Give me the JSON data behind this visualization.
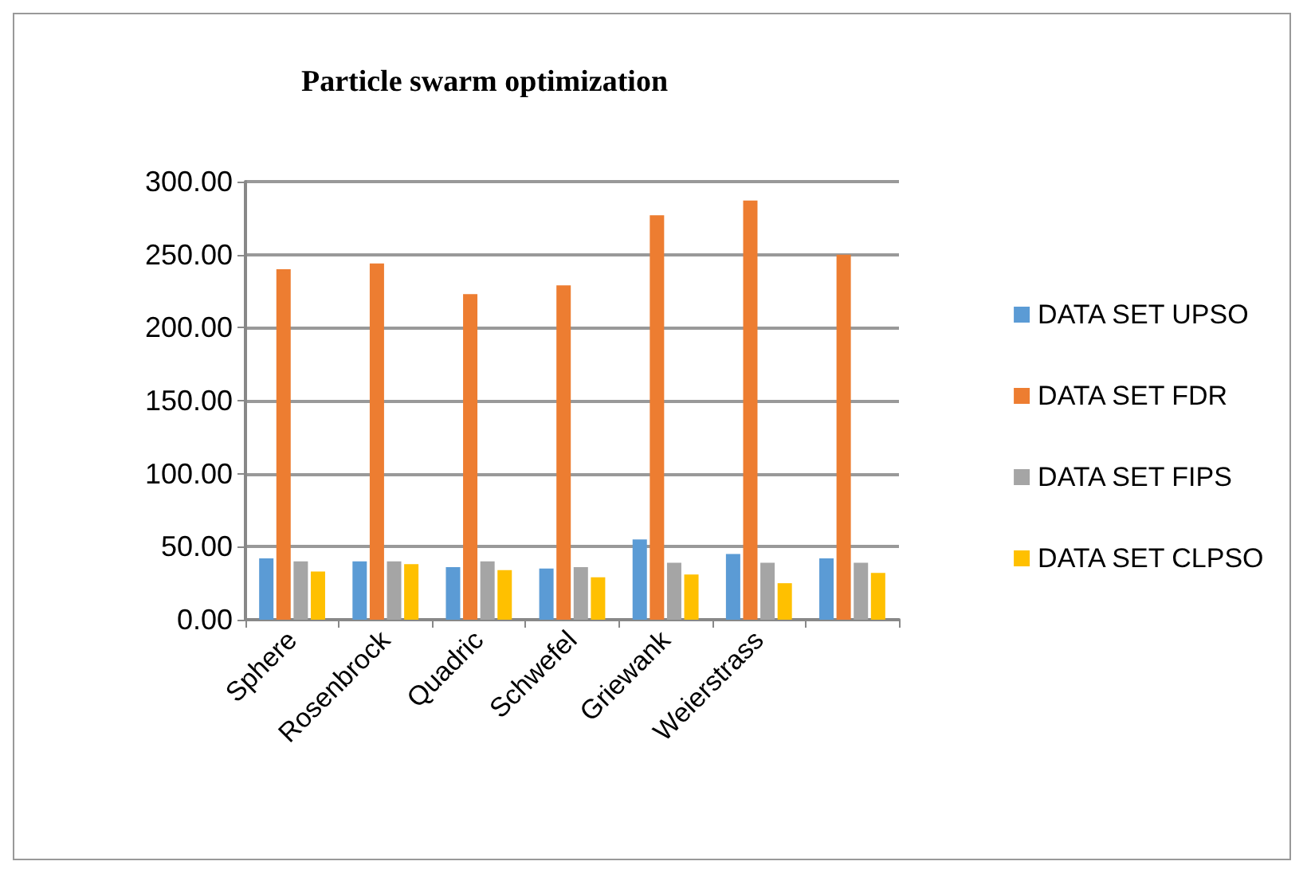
{
  "chart_data": {
    "type": "bar",
    "title": "Particle swarm optimization",
    "categories": [
      "Sphere",
      "Rosenbrock",
      "Quadric",
      "Schwefel",
      "Griewank",
      "Weierstrass",
      null
    ],
    "series": [
      {
        "name": "DATA SET UPSO",
        "color": "#5b9bd5",
        "values": [
          42,
          40,
          36,
          35,
          55,
          45,
          42
        ]
      },
      {
        "name": "DATA SET FDR",
        "color": "#ed7d31",
        "values": [
          240,
          244,
          223,
          229,
          277,
          287,
          250
        ]
      },
      {
        "name": "DATA SET FIPS",
        "color": "#a5a5a5",
        "values": [
          40,
          40,
          40,
          36,
          39,
          39,
          39
        ]
      },
      {
        "name": "DATA SET CLPSO",
        "color": "#ffc000",
        "values": [
          33,
          38,
          34,
          29,
          31,
          25,
          32
        ]
      }
    ],
    "ylim": [
      0,
      300
    ],
    "yticks": [
      {
        "value": 0,
        "label": "0.00"
      },
      {
        "value": 50,
        "label": "50.00"
      },
      {
        "value": 100,
        "label": "100.00"
      },
      {
        "value": 150,
        "label": "150.00"
      },
      {
        "value": 200,
        "label": "200.00"
      },
      {
        "value": 250,
        "label": "250.00"
      },
      {
        "value": 300,
        "label": "300.00"
      }
    ],
    "grid": "y",
    "legend": "right"
  }
}
